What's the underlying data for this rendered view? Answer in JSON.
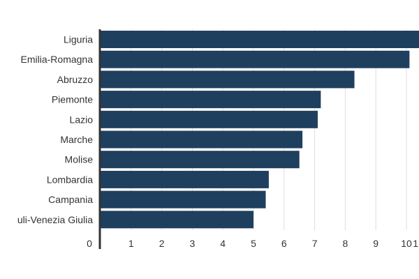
{
  "chart_data": {
    "type": "bar",
    "orientation": "horizontal",
    "categories": [
      "Liguria",
      "Emilia-Romagna",
      "Abruzzo",
      "Piemonte",
      "Lazio",
      "Marche",
      "Molise",
      "Lombardia",
      "Campania",
      "uli-Venezia Giulia"
    ],
    "values": [
      10.5,
      10.1,
      8.3,
      7.2,
      7.1,
      6.6,
      6.5,
      5.5,
      5.4,
      5.0
    ],
    "xlim": [
      0,
      11
    ],
    "xticks": [
      "0",
      "1",
      "2",
      "3",
      "4",
      "5",
      "6",
      "7",
      "8",
      "9",
      "10",
      "1"
    ],
    "title": "",
    "xlabel": "",
    "ylabel": "",
    "grid": "vertical",
    "bar_color": "#1f3f5f"
  }
}
